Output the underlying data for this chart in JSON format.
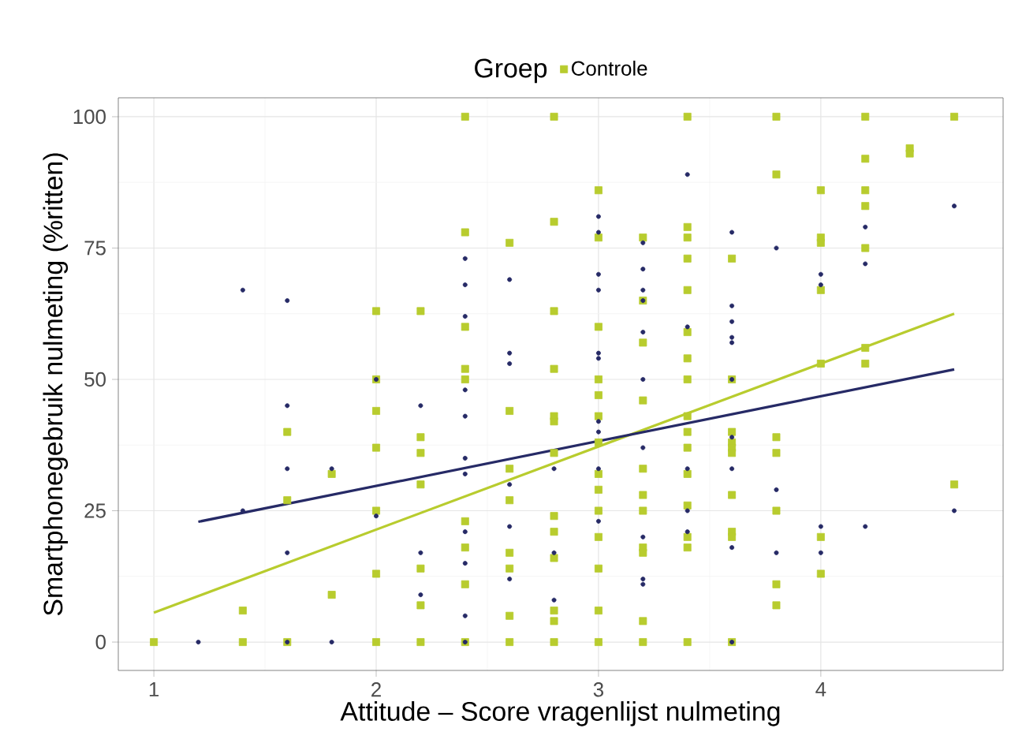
{
  "chart_data": {
    "type": "scatter",
    "xlabel": "Attitude – Score vragenlijst nulmeting",
    "ylabel": "Smartphonegebruik nulmeting (%ritten)",
    "legend_title": "Groep",
    "legend": "top",
    "grid": true,
    "xlim": [
      0.84,
      4.82
    ],
    "ylim": [
      -5.4,
      103.6
    ],
    "xticks": [
      1,
      2,
      3,
      4
    ],
    "yticks": [
      0,
      25,
      50,
      75,
      100
    ],
    "series": [
      {
        "name": "Controle",
        "marker": "square",
        "color": "#b8cc2e",
        "x": [
          1,
          1.4,
          1.4,
          1.6,
          1.6,
          1.6,
          1.8,
          1.8,
          2,
          2,
          2,
          2,
          2,
          2,
          2,
          2.2,
          2.2,
          2.2,
          2.2,
          2.2,
          2.2,
          2.2,
          2.4,
          2.4,
          2.4,
          2.4,
          2.4,
          2.4,
          2.4,
          2.4,
          2.4,
          2.6,
          2.6,
          2.6,
          2.6,
          2.6,
          2.6,
          2.6,
          2.6,
          2.8,
          2.8,
          2.8,
          2.8,
          2.8,
          2.8,
          2.8,
          2.8,
          2.8,
          2.8,
          2.8,
          2.8,
          2.8,
          3,
          3,
          3,
          3,
          3,
          3,
          3,
          3,
          3,
          3,
          3,
          3,
          3,
          3,
          3.2,
          3.2,
          3.2,
          3.2,
          3.2,
          3.2,
          3.2,
          3.2,
          3.2,
          3.2,
          3.2,
          3.4,
          3.4,
          3.4,
          3.4,
          3.4,
          3.4,
          3.4,
          3.4,
          3.4,
          3.4,
          3.4,
          3.4,
          3.4,
          3.4,
          3.4,
          3.4,
          3.6,
          3.6,
          3.6,
          3.6,
          3.6,
          3.6,
          3.6,
          3.6,
          3.6,
          3.6,
          3.8,
          3.8,
          3.8,
          3.8,
          3.8,
          3.8,
          3.8,
          4,
          4,
          4,
          4,
          4,
          4,
          4,
          4.2,
          4.2,
          4.2,
          4.2,
          4.2,
          4.2,
          4.2,
          4.4,
          4.4,
          4.6,
          4.6
        ],
        "values": [
          0,
          6,
          0,
          40,
          27,
          0,
          32,
          9,
          63,
          50,
          44,
          37,
          25,
          13,
          0,
          63,
          39,
          36,
          30,
          14,
          7,
          0,
          100,
          78,
          60,
          52,
          50,
          23,
          18,
          11,
          0,
          76,
          44,
          33,
          27,
          17,
          14,
          5,
          0,
          100,
          80,
          63,
          52,
          43,
          42,
          36,
          24,
          21,
          16,
          6,
          4,
          0,
          86,
          77,
          60,
          50,
          47,
          43,
          38,
          32,
          29,
          25,
          20,
          14,
          6,
          0,
          77,
          65,
          57,
          46,
          33,
          28,
          25,
          18,
          17,
          4,
          0,
          100,
          79,
          77,
          73,
          67,
          59,
          54,
          50,
          43,
          40,
          37,
          32,
          26,
          20,
          18,
          0,
          73,
          50,
          40,
          38,
          37,
          36,
          28,
          21,
          20,
          0,
          100,
          89,
          39,
          36,
          25,
          11,
          7,
          86,
          77,
          76,
          67,
          53,
          20,
          13,
          100,
          92,
          86,
          83,
          75,
          56,
          53,
          94,
          93,
          100,
          30
        ]
      },
      {
        "marker": "circle",
        "color": "#262a66",
        "x": [
          1.2,
          1.4,
          1.4,
          1.6,
          1.6,
          1.6,
          1.6,
          1.6,
          1.8,
          1.8,
          2,
          2,
          2.2,
          2.2,
          2.2,
          2.4,
          2.4,
          2.4,
          2.4,
          2.4,
          2.4,
          2.4,
          2.4,
          2.4,
          2.4,
          2.4,
          2.6,
          2.6,
          2.6,
          2.6,
          2.6,
          2.6,
          2.8,
          2.8,
          2.8,
          3,
          3,
          3,
          3,
          3,
          3,
          3,
          3,
          3,
          3,
          3.2,
          3.2,
          3.2,
          3.2,
          3.2,
          3.2,
          3.2,
          3.2,
          3.2,
          3.2,
          3.4,
          3.4,
          3.4,
          3.4,
          3.4,
          3.6,
          3.6,
          3.6,
          3.6,
          3.6,
          3.6,
          3.6,
          3.6,
          3.6,
          3.6,
          3.8,
          3.8,
          3.8,
          4,
          4,
          4,
          4,
          4.2,
          4.2,
          4.2,
          4.6,
          4.6
        ],
        "values": [
          0,
          67,
          25,
          65,
          45,
          33,
          17,
          0,
          33,
          0,
          50,
          24,
          45,
          17,
          9,
          73,
          68,
          62,
          48,
          43,
          35,
          32,
          21,
          15,
          5,
          0,
          69,
          55,
          53,
          30,
          22,
          12,
          33,
          17,
          8,
          81,
          78,
          70,
          67,
          55,
          54,
          42,
          40,
          33,
          23,
          76,
          71,
          67,
          65,
          59,
          50,
          37,
          20,
          12,
          11,
          89,
          60,
          33,
          25,
          21,
          78,
          64,
          61,
          58,
          57,
          50,
          39,
          33,
          18,
          0,
          75,
          29,
          17,
          70,
          68,
          22,
          17,
          79,
          72,
          22,
          83,
          25
        ]
      },
      {
        "type": "line",
        "marker": "none",
        "color": "#b8cc2e",
        "x": [
          1,
          4.6
        ],
        "values": [
          5.6,
          62.5
        ]
      },
      {
        "type": "line",
        "marker": "none",
        "color": "#262a66",
        "x": [
          1.2,
          4.6
        ],
        "values": [
          22.9,
          51.9
        ]
      }
    ]
  }
}
